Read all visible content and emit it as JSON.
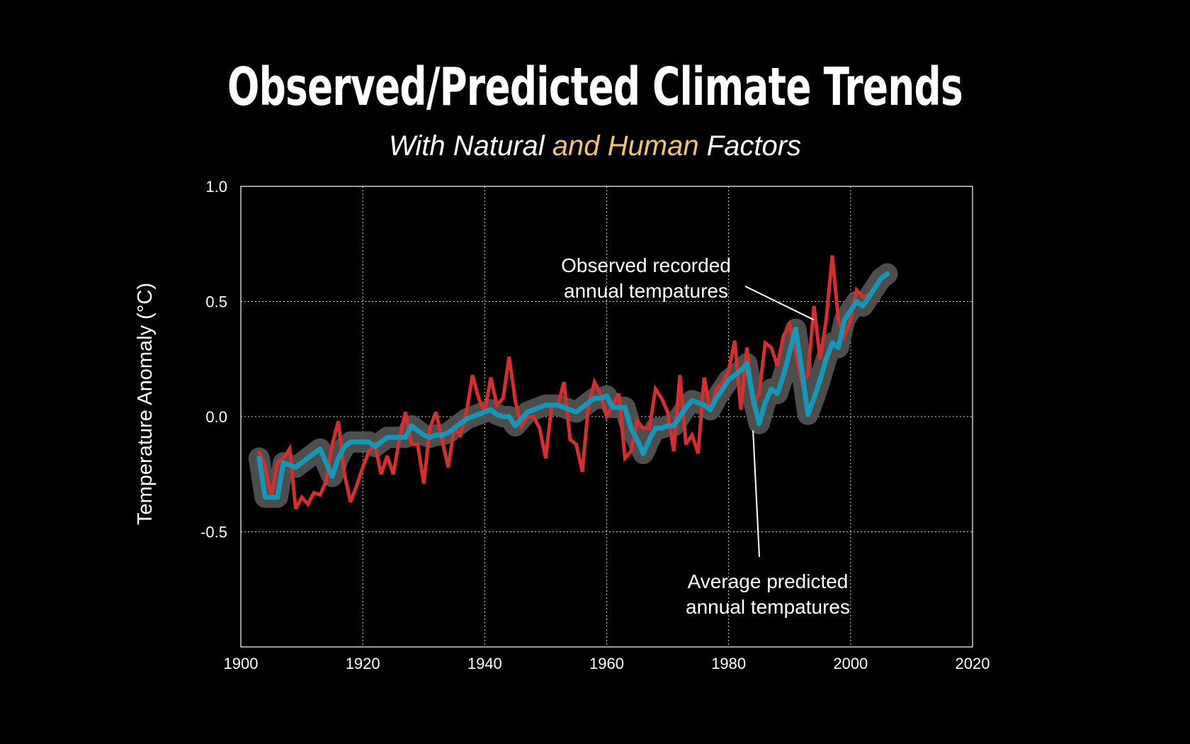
{
  "title": "Observed/Predicted Climate Trends",
  "subtitle": {
    "part1": "With Natural ",
    "highlight": "and Human",
    "part3": " Factors"
  },
  "colors": {
    "background": "#000000",
    "observed": "#d42f2f",
    "predicted": "#1598b8",
    "band": "#555555",
    "highlight": "#f2c46d",
    "text": "#ffffff"
  },
  "chart_data": {
    "type": "line",
    "title": "Observed/Predicted Climate Trends",
    "subtitle": "With Natural and Human Factors",
    "xlabel": "",
    "ylabel": "Temperature Anomaly (°C)",
    "xlim": [
      1900,
      2020
    ],
    "ylim": [
      -1.0,
      1.0
    ],
    "x_ticks": [
      "1900",
      "1920",
      "1940",
      "1960",
      "1980",
      "2000",
      "2020"
    ],
    "y_ticks": [
      {
        "value": 1.0,
        "label": "1.0"
      },
      {
        "value": 0.5,
        "label": "0.5"
      },
      {
        "value": 0.0,
        "label": "0.0"
      },
      {
        "value": -0.5,
        "label": "-0.5"
      }
    ],
    "grid": true,
    "series": [
      {
        "name": "Observed recorded annual tempatures",
        "color": "#d42f2f",
        "x": [
          1903,
          1904,
          1905,
          1906,
          1907,
          1908,
          1909,
          1910,
          1911,
          1912,
          1913,
          1914,
          1915,
          1916,
          1917,
          1918,
          1919,
          1920,
          1921,
          1922,
          1923,
          1924,
          1925,
          1926,
          1927,
          1928,
          1929,
          1930,
          1931,
          1932,
          1933,
          1934,
          1935,
          1936,
          1937,
          1938,
          1939,
          1940,
          1941,
          1942,
          1943,
          1944,
          1945,
          1946,
          1947,
          1948,
          1949,
          1950,
          1951,
          1952,
          1953,
          1954,
          1955,
          1956,
          1957,
          1958,
          1959,
          1960,
          1961,
          1962,
          1963,
          1964,
          1965,
          1966,
          1967,
          1968,
          1969,
          1970,
          1971,
          1972,
          1973,
          1974,
          1975,
          1976,
          1977,
          1978,
          1979,
          1980,
          1981,
          1982,
          1983,
          1984,
          1985,
          1986,
          1987,
          1988,
          1989,
          1990,
          1991,
          1992,
          1993,
          1994,
          1995,
          1996,
          1997,
          1998,
          1999,
          2000,
          2001,
          2002,
          2003,
          2004
        ],
        "values": [
          -0.15,
          -0.22,
          -0.35,
          -0.2,
          -0.18,
          -0.14,
          -0.4,
          -0.35,
          -0.38,
          -0.33,
          -0.34,
          -0.28,
          -0.12,
          -0.02,
          -0.25,
          -0.37,
          -0.3,
          -0.22,
          -0.15,
          -0.12,
          -0.25,
          -0.17,
          -0.25,
          -0.1,
          0.02,
          -0.12,
          -0.12,
          -0.29,
          -0.05,
          0.02,
          -0.1,
          -0.22,
          -0.05,
          -0.08,
          0.02,
          0.18,
          0.08,
          0.02,
          0.17,
          0.05,
          0.08,
          0.26,
          0.07,
          -0.04,
          0.0,
          0.0,
          -0.05,
          -0.18,
          0.05,
          0.05,
          0.15,
          -0.1,
          -0.12,
          -0.24,
          0.05,
          0.15,
          0.1,
          0.0,
          0.05,
          0.1,
          -0.18,
          -0.15,
          -0.02,
          -0.05,
          -0.05,
          0.12,
          0.08,
          0.02,
          -0.15,
          0.18,
          -0.12,
          -0.08,
          -0.16,
          0.17,
          0.02,
          0.12,
          0.15,
          0.2,
          0.33,
          0.03,
          0.3,
          0.05,
          0.1,
          0.32,
          0.3,
          0.22,
          0.35,
          0.4,
          0.28,
          0.15,
          0.18,
          0.48,
          0.25,
          0.42,
          0.7,
          0.42,
          0.35,
          0.42,
          0.55,
          0.52,
          0.53,
          0.55
        ]
      },
      {
        "name": "Average predicted annual tempatures",
        "color": "#1598b8",
        "x": [
          1903,
          1904,
          1905,
          1906,
          1907,
          1908,
          1909,
          1910,
          1911,
          1912,
          1913,
          1914,
          1915,
          1916,
          1917,
          1918,
          1919,
          1920,
          1921,
          1922,
          1923,
          1924,
          1925,
          1926,
          1927,
          1928,
          1929,
          1930,
          1931,
          1932,
          1933,
          1934,
          1935,
          1936,
          1937,
          1938,
          1939,
          1940,
          1941,
          1942,
          1943,
          1944,
          1945,
          1946,
          1947,
          1948,
          1949,
          1950,
          1951,
          1952,
          1953,
          1954,
          1955,
          1956,
          1957,
          1958,
          1959,
          1960,
          1961,
          1962,
          1963,
          1964,
          1965,
          1966,
          1967,
          1968,
          1969,
          1970,
          1971,
          1972,
          1973,
          1974,
          1975,
          1976,
          1977,
          1978,
          1979,
          1980,
          1981,
          1982,
          1983,
          1984,
          1985,
          1986,
          1987,
          1988,
          1989,
          1990,
          1991,
          1992,
          1993,
          1994,
          1995,
          1996,
          1997,
          1998,
          1999,
          2000,
          2001,
          2002,
          2003,
          2004,
          2005,
          2006
        ],
        "values": [
          -0.18,
          -0.35,
          -0.35,
          -0.35,
          -0.2,
          -0.21,
          -0.22,
          -0.2,
          -0.18,
          -0.16,
          -0.14,
          -0.2,
          -0.26,
          -0.18,
          -0.13,
          -0.11,
          -0.11,
          -0.11,
          -0.11,
          -0.13,
          -0.11,
          -0.09,
          -0.09,
          -0.09,
          -0.09,
          -0.04,
          -0.06,
          -0.08,
          -0.09,
          -0.08,
          -0.08,
          -0.07,
          -0.05,
          -0.03,
          -0.01,
          0.0,
          0.01,
          0.02,
          0.03,
          0.01,
          0.0,
          0.0,
          -0.04,
          -0.01,
          0.02,
          0.03,
          0.04,
          0.05,
          0.05,
          0.05,
          0.04,
          0.03,
          0.02,
          0.04,
          0.06,
          0.08,
          0.08,
          0.09,
          0.04,
          0.04,
          0.04,
          -0.05,
          -0.1,
          -0.16,
          -0.1,
          -0.05,
          -0.05,
          -0.04,
          -0.04,
          0.0,
          0.04,
          0.07,
          0.06,
          0.05,
          0.03,
          0.08,
          0.12,
          0.16,
          0.18,
          0.2,
          0.23,
          0.08,
          -0.03,
          0.06,
          0.12,
          0.1,
          0.18,
          0.28,
          0.38,
          0.2,
          0.01,
          0.08,
          0.16,
          0.25,
          0.32,
          0.3,
          0.42,
          0.46,
          0.5,
          0.48,
          0.52,
          0.56,
          0.6,
          0.62
        ]
      }
    ],
    "annotations": [
      {
        "id": "observed",
        "lines": [
          "Observed recorded",
          "annual tempatures"
        ],
        "target_x": 1994,
        "target_y": 0.42
      },
      {
        "id": "predicted",
        "lines": [
          "Average predicted",
          "annual tempatures"
        ],
        "target_x": 1984,
        "target_y": -0.06
      }
    ]
  }
}
